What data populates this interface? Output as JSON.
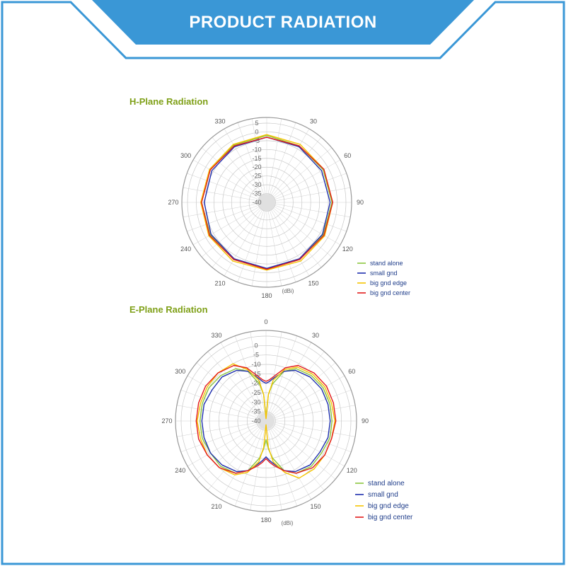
{
  "banner": {
    "title": "PRODUCT RADIATION",
    "fill": "#3a97d6",
    "border": "#2f8ad0"
  },
  "chart_data": [
    {
      "type": "polar-line",
      "title": "H-Plane Radiation",
      "unit": "(dBi)",
      "rlim": [
        -40,
        5
      ],
      "radial_ticks": [
        "5",
        "0",
        "-5",
        "-10",
        "-15",
        "-20",
        "-25",
        "-30",
        "-35",
        "-40"
      ],
      "angle_ticks": [
        "30",
        "60",
        "90",
        "120",
        "150",
        "180",
        "210",
        "240",
        "270",
        "300",
        "330"
      ],
      "angles": [
        0,
        30,
        60,
        90,
        120,
        150,
        180,
        210,
        240,
        270,
        300,
        330
      ],
      "series": [
        {
          "name": "stand alone",
          "color": "#8cc63f",
          "values": [
            -2,
            -3,
            -3,
            -3,
            -3,
            -2.5,
            -2,
            -2.5,
            -3,
            -3,
            -3,
            -2.5
          ]
        },
        {
          "name": "small gnd",
          "color": "#1f2fae",
          "values": [
            -3,
            -3.5,
            -4,
            -4,
            -3.5,
            -3,
            -2.5,
            -3,
            -3.5,
            -4.5,
            -4,
            -3.5
          ]
        },
        {
          "name": "big gnd edge",
          "color": "#f5c400",
          "values": [
            -1.5,
            -2,
            -2.5,
            -2.5,
            -2,
            -1.5,
            -1.5,
            -1.5,
            -2,
            -2.5,
            -2.5,
            -2
          ]
        },
        {
          "name": "big gnd center",
          "color": "#e31b1b",
          "values": [
            -3,
            -3,
            -2.5,
            -2.5,
            -2.5,
            -2.5,
            -2,
            -2.5,
            -2.5,
            -3,
            -3,
            -3
          ]
        }
      ]
    },
    {
      "type": "polar-line",
      "title": "E-Plane Radiation",
      "unit": "(dBi)",
      "rlim": [
        -40,
        5
      ],
      "radial_ticks": [
        "0",
        "-5",
        "-10",
        "-15",
        "-20",
        "-25",
        "-30",
        "-35",
        "-40"
      ],
      "angle_ticks": [
        "0",
        "30",
        "60",
        "90",
        "120",
        "150",
        "180",
        "210",
        "240",
        "270",
        "300",
        "330"
      ],
      "angles": [
        0,
        5,
        10,
        20,
        30,
        45,
        60,
        75,
        90,
        105,
        120,
        135,
        150,
        160,
        170,
        175,
        180,
        185,
        190,
        200,
        210,
        225,
        240,
        255,
        270,
        285,
        300,
        315,
        330,
        340,
        350,
        355
      ],
      "series": [
        {
          "name": "stand alone",
          "color": "#8cc63f",
          "values": [
            -38,
            -26,
            -20,
            -12,
            -8,
            -6,
            -5,
            -5,
            -5,
            -5,
            -6,
            -6,
            -8,
            -12,
            -20,
            -25,
            -30,
            -25,
            -20,
            -12,
            -8,
            -6,
            -6,
            -5,
            -5,
            -5,
            -5,
            -6,
            -8,
            -12,
            -20,
            -26
          ]
        },
        {
          "name": "small gnd",
          "color": "#1f2fae",
          "values": [
            -20,
            -19,
            -17,
            -12,
            -9,
            -7,
            -6,
            -6,
            -6,
            -6,
            -7,
            -7,
            -9,
            -12,
            -17,
            -19,
            -21,
            -19,
            -17,
            -12,
            -9,
            -7,
            -6,
            -6,
            -6,
            -6,
            -7,
            -7,
            -9,
            -12,
            -17,
            -19
          ]
        },
        {
          "name": "big gnd edge",
          "color": "#f5c400",
          "values": [
            -39,
            -26,
            -18,
            -11,
            -7,
            -5,
            -4,
            -4,
            -3.5,
            -4,
            -4,
            -4,
            -5,
            -11,
            -18,
            -26,
            -38,
            -26,
            -18,
            -11,
            -7,
            -5,
            -4,
            -4,
            -3.5,
            -4,
            -4,
            -4,
            -5,
            -11,
            -18,
            -26
          ]
        },
        {
          "name": "big gnd center",
          "color": "#e31b1b",
          "values": [
            -19,
            -18,
            -16,
            -10,
            -6,
            -4,
            -3,
            -3,
            -3,
            -4,
            -4,
            -5,
            -8,
            -12,
            -16,
            -18,
            -20,
            -18,
            -16,
            -12,
            -8,
            -5,
            -4,
            -3,
            -3,
            -3,
            -3,
            -4,
            -6,
            -10,
            -16,
            -18
          ]
        }
      ]
    }
  ]
}
